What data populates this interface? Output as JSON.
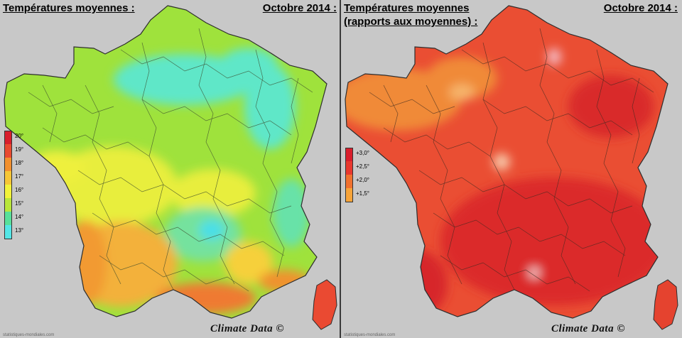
{
  "left_panel": {
    "title": "Températures moyennes :",
    "date": "Octobre 2014 :",
    "legend": [
      {
        "label": "20°",
        "color": "#d81e2c"
      },
      {
        "label": "19°",
        "color": "#e8492f"
      },
      {
        "label": "18°",
        "color": "#f2902e"
      },
      {
        "label": "17°",
        "color": "#f6c636"
      },
      {
        "label": "16°",
        "color": "#f2f23a"
      },
      {
        "label": "15°",
        "color": "#b9e63a"
      },
      {
        "label": "14°",
        "color": "#58e09a"
      },
      {
        "label": "13°",
        "color": "#54e6e6"
      }
    ],
    "credit": "Climate Data ©",
    "source": "statistiques-mondiales.com"
  },
  "right_panel": {
    "title_line1": "Températures moyennes",
    "title_line2": "(rapports aux moyennes) :",
    "date": "Octobre 2014 :",
    "legend": [
      {
        "label": "+3,0°",
        "color": "#d81e2c"
      },
      {
        "label": "+2,5°",
        "color": "#e8382e"
      },
      {
        "label": "+2,0°",
        "color": "#f0712f"
      },
      {
        "label": "+1,5°",
        "color": "#f6a43a"
      }
    ],
    "credit": "Climate Data ©",
    "source": "statistiques-mondiales.com"
  }
}
